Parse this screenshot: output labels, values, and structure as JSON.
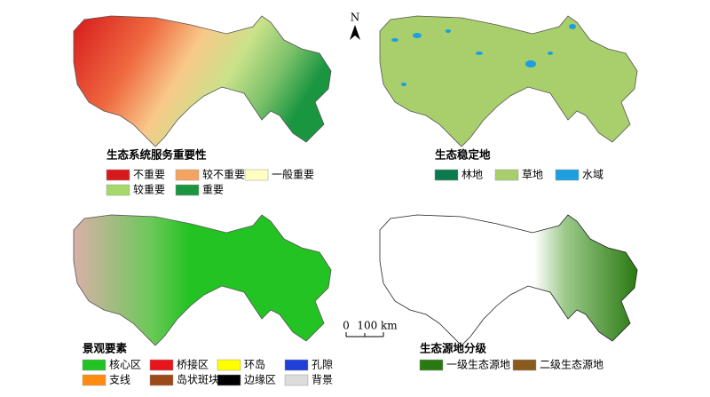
{
  "panels": [
    {
      "legend_title": "生态系统服务重要性",
      "legend": [
        {
          "label": "不重要",
          "color": "#d7191c"
        },
        {
          "label": "较不重要",
          "color": "#f4a460"
        },
        {
          "label": "一般重要",
          "color": "#ffffc0"
        },
        {
          "label": "较重要",
          "color": "#a6d96a"
        },
        {
          "label": "重要",
          "color": "#1a9641"
        }
      ]
    },
    {
      "legend_title": "生态稳定地",
      "legend": [
        {
          "label": "林地",
          "color": "#0b7a4e"
        },
        {
          "label": "草地",
          "color": "#a8cf6c"
        },
        {
          "label": "水域",
          "color": "#1c9ee0"
        }
      ]
    },
    {
      "legend_title": "景观要素",
      "legend": [
        {
          "label": "核心区",
          "color": "#22c322"
        },
        {
          "label": "桥接区",
          "color": "#e8161c"
        },
        {
          "label": "环岛",
          "color": "#ffff00"
        },
        {
          "label": "孔隙",
          "color": "#1f3fd8"
        },
        {
          "label": "支线",
          "color": "#ff8c10"
        },
        {
          "label": "岛状斑块",
          "color": "#9c4a18"
        },
        {
          "label": "边缘区",
          "color": "#000000"
        },
        {
          "label": "背景",
          "color": "#dcdcdc"
        }
      ]
    },
    {
      "legend_title": "生态源地分级",
      "legend": [
        {
          "label": "一级生态源地",
          "color": "#2a7a12"
        },
        {
          "label": "二级生态源地",
          "color": "#8b5a1e"
        }
      ]
    }
  ],
  "north_arrow": "N",
  "scale_bar": {
    "labels": [
      "0",
      "100 km"
    ]
  }
}
